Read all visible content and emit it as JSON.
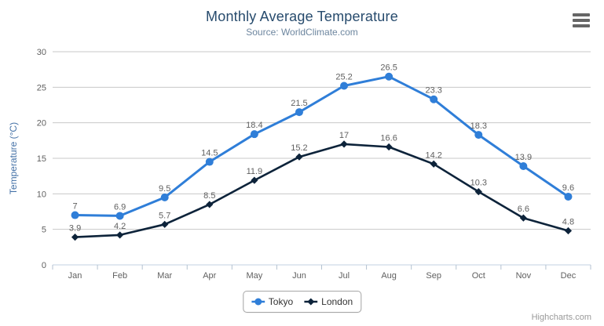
{
  "header": {
    "title": "Monthly Average Temperature",
    "subtitle": "Source: WorldClimate.com"
  },
  "credits": {
    "label": "Highcharts.com"
  },
  "chart_data": {
    "type": "line",
    "title": "Monthly Average Temperature",
    "subtitle": "Source: WorldClimate.com",
    "categories": [
      "Jan",
      "Feb",
      "Mar",
      "Apr",
      "May",
      "Jun",
      "Jul",
      "Aug",
      "Sep",
      "Oct",
      "Nov",
      "Dec"
    ],
    "series": [
      {
        "name": "Tokyo",
        "color": "#2f7ed8",
        "marker": "circle",
        "line_width": 3,
        "values": [
          7,
          6.9,
          9.5,
          14.5,
          18.4,
          21.5,
          25.2,
          26.5,
          23.3,
          18.3,
          13.9,
          9.6
        ]
      },
      {
        "name": "London",
        "color": "#0d233a",
        "marker": "diamond",
        "line_width": 2.6,
        "values": [
          3.9,
          4.2,
          5.7,
          8.5,
          11.9,
          15.2,
          17,
          16.6,
          14.2,
          10.3,
          6.6,
          4.8
        ]
      }
    ],
    "xlabel": "",
    "ylabel": "Temperature (°C)",
    "ylim": [
      0,
      30
    ],
    "ytick_step": 5,
    "yticks": [
      0,
      5,
      10,
      15,
      20,
      25,
      30
    ],
    "grid": true,
    "data_labels": true,
    "legend_position": "bottom-center"
  },
  "styles": {
    "background": "#ffffff",
    "grid_color": "#c8c8c8",
    "axis_line_color": "#c0d0e0",
    "tick_color": "#b4c2d0",
    "tick_label_color": "#606060",
    "data_label_color": "#606060",
    "title_color": "#274b6d",
    "subtitle_color": "#6d869f",
    "axis_title_color": "#4572a7",
    "legend_text_color": "#333333",
    "credits_color": "#999999",
    "menu_icon_color": "#666666"
  }
}
